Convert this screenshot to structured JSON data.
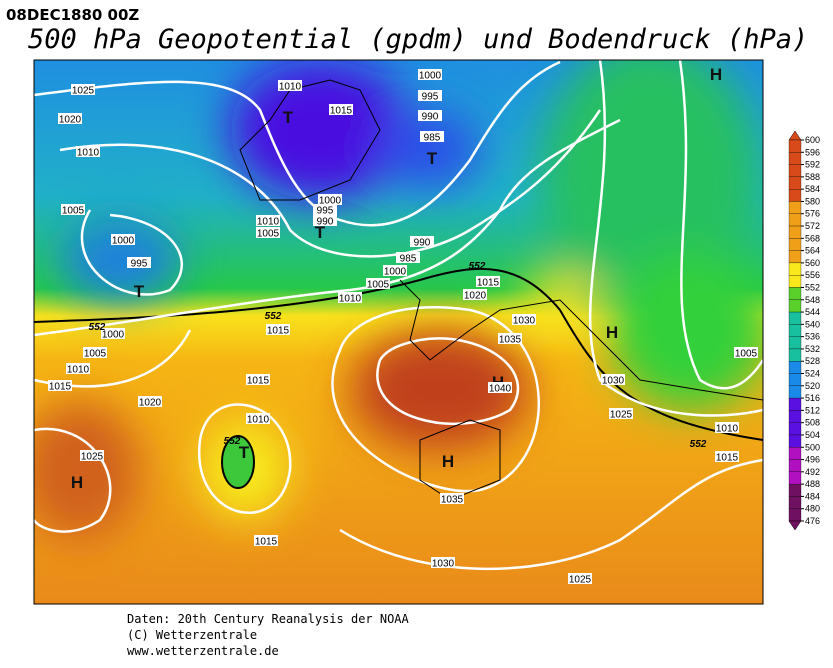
{
  "header": {
    "date": "08DEC1880 00Z",
    "title": "500 hPa Geopotential (gpdm) und Bodendruck (hPa)"
  },
  "map": {
    "labels": [
      "1025",
      "1020",
      "1010",
      "1005",
      "1000",
      "995",
      "T",
      "1000",
      "1005",
      "1010",
      "1015",
      "1020",
      "1025",
      "H",
      "552",
      "552",
      "552",
      "552",
      "552",
      "1010",
      "T",
      "1015",
      "1000",
      "995",
      "990",
      "985",
      "T",
      "1000",
      "995",
      "990",
      "T",
      "1010",
      "1005",
      "990",
      "985",
      "1000",
      "1005",
      "1010",
      "1015",
      "1020",
      "1015",
      "1030",
      "1035",
      "1015",
      "1010",
      "T",
      "1015",
      "H",
      "1040",
      "H",
      "1035",
      "1030",
      "1025",
      "1030",
      "1025",
      "1010",
      "1015",
      "H",
      "1005",
      "H"
    ]
  },
  "colorbar": {
    "ticks": [
      600,
      596,
      592,
      588,
      584,
      580,
      576,
      572,
      568,
      564,
      560,
      556,
      552,
      548,
      544,
      540,
      536,
      532,
      528,
      524,
      520,
      516,
      512,
      508,
      504,
      500,
      496,
      492,
      488,
      484,
      480,
      476
    ]
  },
  "footer": {
    "lines": [
      "Daten: 20th Century Reanalysis der NOAA",
      "(C) Wetterzentrale",
      "www.wetterzentrale.de"
    ]
  }
}
